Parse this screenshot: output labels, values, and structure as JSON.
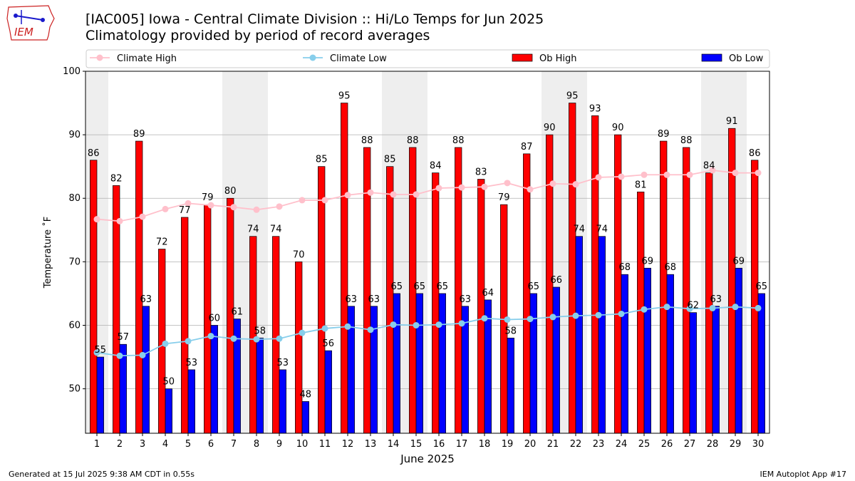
{
  "header": {
    "title_line1": "[IAC005] Iowa - Central Climate Division :: Hi/Lo Temps for Jun 2025",
    "title_line2": "Climatology provided by period of record averages",
    "logo_text": "IEM"
  },
  "footer": {
    "generated": "Generated at 15 Jul 2025 9:38 AM CDT in 0.55s",
    "app": "IEM Autoplot App #17"
  },
  "colors": {
    "ob_high": "#ff0000",
    "ob_low": "#0000ff",
    "climate_high": "#ffc0cb",
    "climate_low": "#87ceeb",
    "weekend_shade": "#eeeeee",
    "grid": "#b0b0b0"
  },
  "chart_data": {
    "type": "bar",
    "xlabel": "June 2025",
    "ylabel": "Temperature ˚F",
    "ylim": [
      43,
      100
    ],
    "yticks": [
      50,
      60,
      70,
      80,
      90,
      100
    ],
    "grid": "horizontal",
    "legend_position": "top",
    "categories": [
      1,
      2,
      3,
      4,
      5,
      6,
      7,
      8,
      9,
      10,
      11,
      12,
      13,
      14,
      15,
      16,
      17,
      18,
      19,
      20,
      21,
      22,
      23,
      24,
      25,
      26,
      27,
      28,
      29,
      30
    ],
    "shaded_days": [
      1,
      7,
      8,
      14,
      15,
      21,
      22,
      28,
      29
    ],
    "series": [
      {
        "name": "Climate High",
        "kind": "line",
        "values": [
          76.7,
          76.4,
          77.1,
          78.3,
          79.2,
          78.9,
          78.6,
          78.2,
          78.7,
          79.7,
          79.7,
          80.5,
          80.9,
          80.6,
          80.6,
          81.6,
          81.7,
          81.8,
          82.4,
          81.4,
          82.3,
          82.2,
          83.3,
          83.4,
          83.7,
          83.7,
          83.7,
          84.4,
          84.0,
          84.0
        ]
      },
      {
        "name": "Climate Low",
        "kind": "line",
        "values": [
          55.7,
          55.2,
          55.3,
          57.1,
          57.5,
          58.3,
          57.9,
          57.8,
          57.9,
          58.8,
          59.5,
          59.8,
          59.3,
          60.1,
          60.0,
          60.1,
          60.3,
          61.1,
          60.9,
          61.0,
          61.3,
          61.5,
          61.6,
          61.8,
          62.5,
          62.9,
          62.6,
          62.7,
          62.9,
          62.7
        ]
      },
      {
        "name": "Ob High",
        "kind": "bar",
        "values": [
          86,
          82,
          89,
          72,
          77,
          79,
          80,
          74,
          74,
          70,
          85,
          95,
          88,
          85,
          88,
          84,
          88,
          83,
          79,
          87,
          90,
          95,
          93,
          90,
          81,
          89,
          88,
          84,
          91,
          86
        ]
      },
      {
        "name": "Ob Low",
        "kind": "bar",
        "values": [
          55,
          57,
          63,
          50,
          53,
          60,
          61,
          58,
          53,
          48,
          56,
          63,
          63,
          65,
          65,
          65,
          63,
          64,
          58,
          65,
          66,
          74,
          74,
          68,
          69,
          68,
          62,
          63,
          69,
          65
        ]
      }
    ]
  }
}
